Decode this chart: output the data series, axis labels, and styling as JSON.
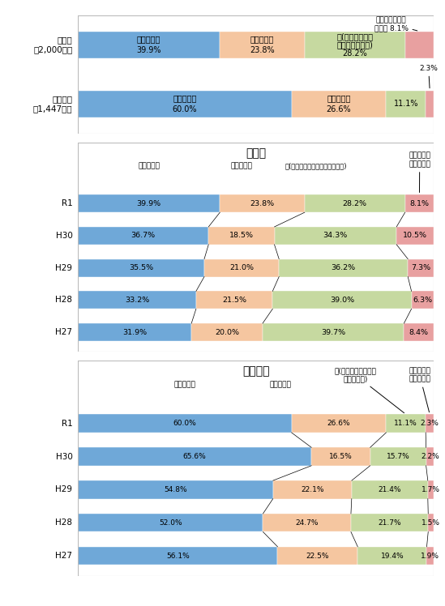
{
  "colors": {
    "blue": "#6FA8D8",
    "orange": "#F5C6A0",
    "green": "#C6D9A0",
    "pink": "#E8A0A0",
    "bg": "#FFFFFF",
    "border": "#CCCCCC"
  },
  "top_panel": {
    "rows": [
      {
        "label": "延滞者\n（2,000人）",
        "values": [
          39.9,
          23.8,
          28.2,
          8.1
        ]
      },
      {
        "label": "無延滞者\n（1,447人）",
        "values": [
          60.0,
          26.6,
          11.1,
          2.3
        ]
      }
    ]
  },
  "mid_panel": {
    "title": "延滞者",
    "rows": [
      {
        "label": "R1",
        "values": [
          39.9,
          23.8,
          28.2,
          8.1
        ]
      },
      {
        "label": "H30",
        "values": [
          36.7,
          18.5,
          34.3,
          10.5
        ]
      },
      {
        "label": "H29",
        "values": [
          35.5,
          21.0,
          36.2,
          7.3
        ]
      },
      {
        "label": "H28",
        "values": [
          33.2,
          21.5,
          39.0,
          6.3
        ]
      },
      {
        "label": "H27",
        "values": [
          31.9,
          20.0,
          39.7,
          8.4
        ]
      }
    ]
  },
  "bot_panel": {
    "title": "無延滞者",
    "rows": [
      {
        "label": "R1",
        "values": [
          60.0,
          26.6,
          11.1,
          2.3
        ]
      },
      {
        "label": "H30",
        "values": [
          65.6,
          16.5,
          15.7,
          2.2
        ]
      },
      {
        "label": "H29",
        "values": [
          54.8,
          22.1,
          21.4,
          1.7
        ]
      },
      {
        "label": "H28",
        "values": [
          52.0,
          24.7,
          21.7,
          1.5
        ]
      },
      {
        "label": "H27",
        "values": [
          56.1,
          22.5,
          19.4,
          1.9
        ]
      }
    ]
  }
}
